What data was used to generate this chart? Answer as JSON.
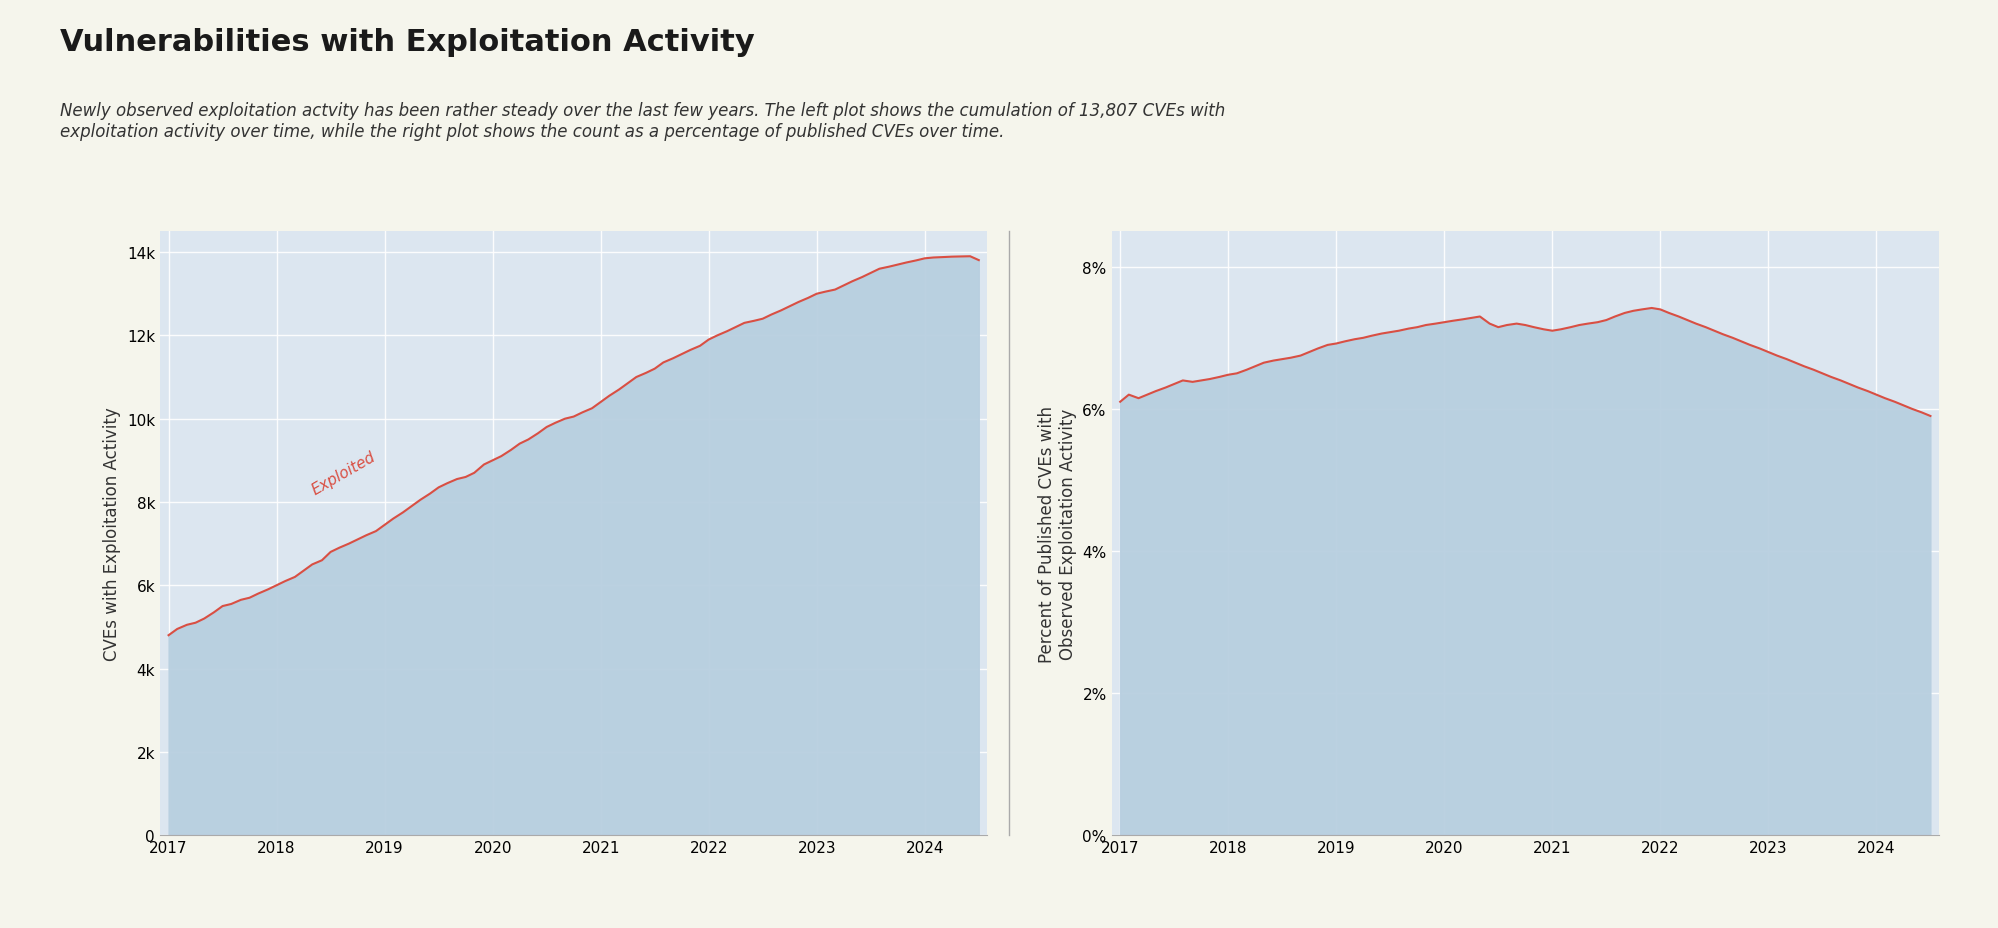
{
  "title": "Vulnerabilities with Exploitation Activity",
  "subtitle": "Newly observed exploitation actvity has been rather steady over the last few years. The left plot shows the cumulation of 13,807 CVEs with\nexploitation activity over time, while the right plot shows the count as a percentage of published CVEs over time.",
  "background_color": "#f5f5ec",
  "plot_bg_color": "#dce6f0",
  "line_color": "#d94f43",
  "fill_color": "#b8cfe0",
  "left_ylabel": "CVEs with Exploitation Activity",
  "right_ylabel": "Percent of Published CVEs with\nObserved Exploitation Activity",
  "xlabel": "",
  "annotation_text": "Exploited",
  "annotation_color": "#d94f43",
  "left_yticks": [
    0,
    2000,
    4000,
    6000,
    8000,
    10000,
    12000,
    14000
  ],
  "left_ytick_labels": [
    "0",
    "2k",
    "4k",
    "6k",
    "8k",
    "10k",
    "12k",
    "14k"
  ],
  "left_ylim": [
    0,
    14500
  ],
  "right_yticks": [
    0,
    0.02,
    0.04,
    0.06,
    0.08
  ],
  "right_ytick_labels": [
    "0%",
    "2%",
    "4%",
    "6%",
    "8%"
  ],
  "right_ylim": [
    0,
    0.085
  ],
  "xtick_years_left": [
    2017,
    2018,
    2019,
    2020,
    2021,
    2022,
    2023,
    2024
  ],
  "xtick_years_right": [
    2017,
    2018,
    2019,
    2020,
    2021,
    2022,
    2023,
    2024
  ],
  "left_data_x": [
    2017.0,
    2017.08,
    2017.17,
    2017.25,
    2017.33,
    2017.42,
    2017.5,
    2017.58,
    2017.67,
    2017.75,
    2017.83,
    2017.92,
    2018.0,
    2018.08,
    2018.17,
    2018.25,
    2018.33,
    2018.42,
    2018.5,
    2018.58,
    2018.67,
    2018.75,
    2018.83,
    2018.92,
    2019.0,
    2019.08,
    2019.17,
    2019.25,
    2019.33,
    2019.42,
    2019.5,
    2019.58,
    2019.67,
    2019.75,
    2019.83,
    2019.92,
    2020.0,
    2020.08,
    2020.17,
    2020.25,
    2020.33,
    2020.42,
    2020.5,
    2020.58,
    2020.67,
    2020.75,
    2020.83,
    2020.92,
    2021.0,
    2021.08,
    2021.17,
    2021.25,
    2021.33,
    2021.42,
    2021.5,
    2021.58,
    2021.67,
    2021.75,
    2021.83,
    2021.92,
    2022.0,
    2022.08,
    2022.17,
    2022.25,
    2022.33,
    2022.42,
    2022.5,
    2022.58,
    2022.67,
    2022.75,
    2022.83,
    2022.92,
    2023.0,
    2023.08,
    2023.17,
    2023.25,
    2023.33,
    2023.42,
    2023.5,
    2023.58,
    2023.67,
    2023.75,
    2023.83,
    2023.92,
    2024.0,
    2024.08,
    2024.17,
    2024.25,
    2024.33,
    2024.42,
    2024.5
  ],
  "left_data_y": [
    4800,
    4950,
    5050,
    5100,
    5200,
    5350,
    5500,
    5550,
    5650,
    5700,
    5800,
    5900,
    6000,
    6100,
    6200,
    6350,
    6500,
    6600,
    6800,
    6900,
    7000,
    7100,
    7200,
    7300,
    7450,
    7600,
    7750,
    7900,
    8050,
    8200,
    8350,
    8450,
    8550,
    8600,
    8700,
    8900,
    9000,
    9100,
    9250,
    9400,
    9500,
    9650,
    9800,
    9900,
    10000,
    10050,
    10150,
    10250,
    10400,
    10550,
    10700,
    10850,
    11000,
    11100,
    11200,
    11350,
    11450,
    11550,
    11650,
    11750,
    11900,
    12000,
    12100,
    12200,
    12300,
    12350,
    12400,
    12500,
    12600,
    12700,
    12800,
    12900,
    13000,
    13050,
    13100,
    13200,
    13300,
    13400,
    13500,
    13600,
    13650,
    13700,
    13750,
    13800,
    13850,
    13870,
    13880,
    13890,
    13895,
    13900,
    13807
  ],
  "right_data_x": [
    2017.0,
    2017.08,
    2017.17,
    2017.25,
    2017.33,
    2017.42,
    2017.5,
    2017.58,
    2017.67,
    2017.75,
    2017.83,
    2017.92,
    2018.0,
    2018.08,
    2018.17,
    2018.25,
    2018.33,
    2018.42,
    2018.5,
    2018.58,
    2018.67,
    2018.75,
    2018.83,
    2018.92,
    2019.0,
    2019.08,
    2019.17,
    2019.25,
    2019.33,
    2019.42,
    2019.5,
    2019.58,
    2019.67,
    2019.75,
    2019.83,
    2019.92,
    2020.0,
    2020.08,
    2020.17,
    2020.25,
    2020.33,
    2020.42,
    2020.5,
    2020.58,
    2020.67,
    2020.75,
    2020.83,
    2020.92,
    2021.0,
    2021.08,
    2021.17,
    2021.25,
    2021.33,
    2021.42,
    2021.5,
    2021.58,
    2021.67,
    2021.75,
    2021.83,
    2021.92,
    2022.0,
    2022.08,
    2022.17,
    2022.25,
    2022.33,
    2022.42,
    2022.5,
    2022.58,
    2022.67,
    2022.75,
    2022.83,
    2022.92,
    2023.0,
    2023.08,
    2023.17,
    2023.25,
    2023.33,
    2023.42,
    2023.5,
    2023.58,
    2023.67,
    2023.75,
    2023.83,
    2023.92,
    2024.0,
    2024.08,
    2024.17,
    2024.25,
    2024.33,
    2024.42,
    2024.5
  ],
  "right_data_y": [
    0.061,
    0.062,
    0.0615,
    0.062,
    0.0625,
    0.063,
    0.0635,
    0.064,
    0.0638,
    0.064,
    0.0642,
    0.0645,
    0.0648,
    0.065,
    0.0655,
    0.066,
    0.0665,
    0.0668,
    0.067,
    0.0672,
    0.0675,
    0.068,
    0.0685,
    0.069,
    0.0692,
    0.0695,
    0.0698,
    0.07,
    0.0703,
    0.0706,
    0.0708,
    0.071,
    0.0713,
    0.0715,
    0.0718,
    0.072,
    0.0722,
    0.0724,
    0.0726,
    0.0728,
    0.073,
    0.072,
    0.0715,
    0.0718,
    0.072,
    0.0718,
    0.0715,
    0.0712,
    0.071,
    0.0712,
    0.0715,
    0.0718,
    0.072,
    0.0722,
    0.0725,
    0.073,
    0.0735,
    0.0738,
    0.074,
    0.0742,
    0.074,
    0.0735,
    0.073,
    0.0725,
    0.072,
    0.0715,
    0.071,
    0.0705,
    0.07,
    0.0695,
    0.069,
    0.0685,
    0.068,
    0.0675,
    0.067,
    0.0665,
    0.066,
    0.0655,
    0.065,
    0.0645,
    0.064,
    0.0635,
    0.063,
    0.0625,
    0.062,
    0.0615,
    0.061,
    0.0605,
    0.06,
    0.0595,
    0.059
  ]
}
